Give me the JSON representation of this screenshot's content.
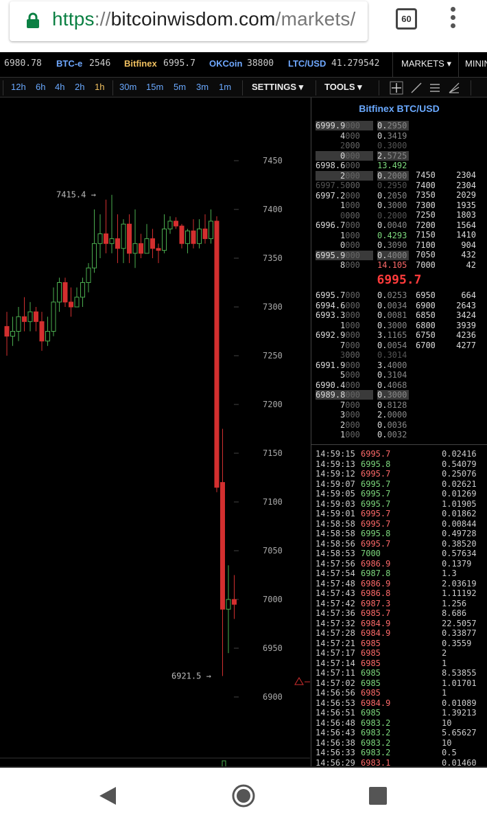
{
  "browser": {
    "url_scheme": "https",
    "url_sep": "://",
    "url_host": "bitcoinwisdom.com",
    "url_path": "/markets/",
    "tab_count": "60"
  },
  "ticker": [
    {
      "name": "",
      "value": "6980.78"
    },
    {
      "name": "BTC-e",
      "value": "2546"
    },
    {
      "name": "Bitfinex",
      "value": "6995.7"
    },
    {
      "name": "OKCoin",
      "value": "38800"
    },
    {
      "name": "LTC/USD",
      "value": "41.279542"
    }
  ],
  "nav": {
    "markets": "MARKETS ▾",
    "mining": "MININ"
  },
  "timeframes": [
    "12h",
    "6h",
    "4h",
    "2h",
    "1h",
    "30m",
    "15m",
    "5m",
    "3m",
    "1m"
  ],
  "selected_timeframe": "1h",
  "toolbar": {
    "settings": "SETTINGS ▾",
    "tools": "TOOLS ▾"
  },
  "chart_data": {
    "type": "candlestick",
    "y_ticks": [
      "7450",
      "7400",
      "7350",
      "7300",
      "7250",
      "7200",
      "7150",
      "7100",
      "7050",
      "7000",
      "6950",
      "6900"
    ],
    "ylim": [
      6880,
      7500
    ],
    "high_label": "7415.4 →",
    "low_label": "6921.5 →",
    "colors": {
      "up": "#4caf50",
      "down": "#d32f2f"
    },
    "candles": [
      {
        "o": 7280,
        "h": 7295,
        "l": 7250,
        "c": 7270
      },
      {
        "o": 7270,
        "h": 7290,
        "l": 7260,
        "c": 7275
      },
      {
        "o": 7275,
        "h": 7300,
        "l": 7265,
        "c": 7290
      },
      {
        "o": 7290,
        "h": 7310,
        "l": 7275,
        "c": 7285
      },
      {
        "o": 7285,
        "h": 7305,
        "l": 7275,
        "c": 7295
      },
      {
        "o": 7295,
        "h": 7300,
        "l": 7275,
        "c": 7285
      },
      {
        "o": 7285,
        "h": 7295,
        "l": 7255,
        "c": 7265
      },
      {
        "o": 7265,
        "h": 7290,
        "l": 7260,
        "c": 7275
      },
      {
        "o": 7275,
        "h": 7320,
        "l": 7270,
        "c": 7305
      },
      {
        "o": 7305,
        "h": 7330,
        "l": 7295,
        "c": 7325
      },
      {
        "o": 7325,
        "h": 7330,
        "l": 7300,
        "c": 7305
      },
      {
        "o": 7305,
        "h": 7320,
        "l": 7290,
        "c": 7300
      },
      {
        "o": 7300,
        "h": 7320,
        "l": 7300,
        "c": 7310
      },
      {
        "o": 7310,
        "h": 7330,
        "l": 7300,
        "c": 7325
      },
      {
        "o": 7325,
        "h": 7345,
        "l": 7315,
        "c": 7340
      },
      {
        "o": 7340,
        "h": 7400,
        "l": 7335,
        "c": 7365
      },
      {
        "o": 7365,
        "h": 7395,
        "l": 7350,
        "c": 7375
      },
      {
        "o": 7375,
        "h": 7410,
        "l": 7355,
        "c": 7365
      },
      {
        "o": 7365,
        "h": 7415,
        "l": 7355,
        "c": 7370
      },
      {
        "o": 7370,
        "h": 7395,
        "l": 7345,
        "c": 7360
      },
      {
        "o": 7360,
        "h": 7390,
        "l": 7345,
        "c": 7385
      },
      {
        "o": 7385,
        "h": 7395,
        "l": 7345,
        "c": 7355
      },
      {
        "o": 7355,
        "h": 7400,
        "l": 7340,
        "c": 7365
      },
      {
        "o": 7365,
        "h": 7375,
        "l": 7350,
        "c": 7355
      },
      {
        "o": 7355,
        "h": 7385,
        "l": 7355,
        "c": 7370
      },
      {
        "o": 7370,
        "h": 7380,
        "l": 7350,
        "c": 7360
      },
      {
        "o": 7360,
        "h": 7365,
        "l": 7345,
        "c": 7358
      },
      {
        "o": 7358,
        "h": 7395,
        "l": 7355,
        "c": 7380
      },
      {
        "o": 7380,
        "h": 7393,
        "l": 7375,
        "c": 7388
      },
      {
        "o": 7388,
        "h": 7392,
        "l": 7380,
        "c": 7383
      },
      {
        "o": 7383,
        "h": 7385,
        "l": 7360,
        "c": 7365
      },
      {
        "o": 7365,
        "h": 7380,
        "l": 7355,
        "c": 7378
      },
      {
        "o": 7378,
        "h": 7390,
        "l": 7360,
        "c": 7365
      },
      {
        "o": 7365,
        "h": 7390,
        "l": 7360,
        "c": 7380
      },
      {
        "o": 7380,
        "h": 7395,
        "l": 7365,
        "c": 7370
      },
      {
        "o": 7370,
        "h": 7400,
        "l": 7365,
        "c": 7388
      },
      {
        "o": 7388,
        "h": 7393,
        "l": 7110,
        "c": 7115
      },
      {
        "o": 7120,
        "h": 7175,
        "l": 6921.5,
        "c": 6990
      },
      {
        "o": 6990,
        "h": 7035,
        "l": 6945,
        "c": 7000
      },
      {
        "o": 7000,
        "h": 7025,
        "l": 6980,
        "c": 6995
      }
    ]
  },
  "orderbook": {
    "title": "Bitfinex BTC/USD",
    "asks": [
      {
        "price": "6999.9",
        "pdim": "000",
        "amt": "0.",
        "adim": "2950",
        "hp": true,
        "hl": true,
        "ac": "d"
      },
      {
        "price": "4",
        "pdim": "000",
        "amt": "0.",
        "adim": "3419",
        "hp": false,
        "hl": false,
        "ac": "n"
      },
      {
        "price": "2",
        "pdim": "000",
        "amt": "0.",
        "adim": "3000",
        "hp": false,
        "hl": false,
        "ac": "x"
      },
      {
        "price": "0",
        "pdim": "000",
        "amt": "2.",
        "adim": "5725",
        "hp": true,
        "hl": true,
        "ac": "d"
      },
      {
        "price": "6998.6",
        "pdim": "000",
        "amt": "13.",
        "adim": "492",
        "hp": false,
        "hl": false,
        "ac": "g"
      },
      {
        "price": "2",
        "pdim": "000",
        "amt": "0.",
        "adim": "2000",
        "hp": true,
        "hl": true,
        "ac": "d"
      },
      {
        "price": "6997.5",
        "pdim": "000",
        "amt": "0.",
        "adim": "2950",
        "hp": false,
        "hl": false,
        "ac": "x"
      },
      {
        "price": "6997.2",
        "pdim": "000",
        "amt": "0.",
        "adim": "2050",
        "hp": false,
        "hl": false,
        "ac": "n"
      },
      {
        "price": "1",
        "pdim": "000",
        "amt": "0.",
        "adim": "3000",
        "hp": false,
        "hl": false,
        "ac": "n"
      },
      {
        "price": "0",
        "pdim": "000",
        "amt": "0.",
        "adim": "2000",
        "hp": false,
        "hl": false,
        "ac": "x"
      },
      {
        "price": "6996.7",
        "pdim": "000",
        "amt": "0.",
        "adim": "0040",
        "hp": false,
        "hl": false,
        "ac": "n"
      },
      {
        "price": "1",
        "pdim": "000",
        "amt": "0.",
        "adim": "4293",
        "hp": false,
        "hl": false,
        "ac": "g"
      },
      {
        "price": "0",
        "pdim": "000",
        "amt": "0.",
        "adim": "3090",
        "hp": false,
        "hl": false,
        "ac": "n"
      },
      {
        "price": "6995.9",
        "pdim": "000",
        "amt": "0.",
        "adim": "4000",
        "hp": true,
        "hl": true,
        "ac": "d"
      },
      {
        "price": "8",
        "pdim": "000",
        "amt": "14.",
        "adim": "105",
        "hp": false,
        "hl": false,
        "ac": "r"
      }
    ],
    "ask_levels": [
      [
        "7450",
        "2304"
      ],
      [
        "7400",
        "2304"
      ],
      [
        "7350",
        "2029"
      ],
      [
        "7300",
        "1935"
      ],
      [
        "7250",
        "1803"
      ],
      [
        "7200",
        "1564"
      ],
      [
        "7150",
        "1410"
      ],
      [
        "7100",
        "904"
      ],
      [
        "7050",
        "432"
      ],
      [
        "7000",
        "42"
      ]
    ],
    "last_price": "6995.7",
    "bids": [
      {
        "price": "6995.7",
        "pdim": "000",
        "amt": "0.",
        "adim": "0253",
        "hp": false,
        "hl": false,
        "ac": "n"
      },
      {
        "price": "6994.6",
        "pdim": "000",
        "amt": "0.",
        "adim": "0034",
        "hp": false,
        "hl": false,
        "ac": "n"
      },
      {
        "price": "6993.3",
        "pdim": "000",
        "amt": "0.",
        "adim": "0081",
        "hp": false,
        "hl": false,
        "ac": "n"
      },
      {
        "price": "1",
        "pdim": "000",
        "amt": "0.",
        "adim": "3000",
        "hp": false,
        "hl": false,
        "ac": "n"
      },
      {
        "price": "6992.9",
        "pdim": "000",
        "amt": "3.",
        "adim": "1165",
        "hp": false,
        "hl": false,
        "ac": "n"
      },
      {
        "price": "7",
        "pdim": "000",
        "amt": "0.",
        "adim": "0054",
        "hp": false,
        "hl": false,
        "ac": "n"
      },
      {
        "price": "3",
        "pdim": "000",
        "amt": "0.",
        "adim": "3014",
        "hp": false,
        "hl": false,
        "ac": "x"
      },
      {
        "price": "6991.9",
        "pdim": "000",
        "amt": "3.",
        "adim": "4000",
        "hp": false,
        "hl": false,
        "ac": "n"
      },
      {
        "price": "5",
        "pdim": "000",
        "amt": "0.",
        "adim": "3104",
        "hp": false,
        "hl": false,
        "ac": "n"
      },
      {
        "price": "6990.4",
        "pdim": "000",
        "amt": "0.",
        "adim": "4068",
        "hp": false,
        "hl": false,
        "ac": "n"
      },
      {
        "price": "6989.8",
        "pdim": "000",
        "amt": "0.",
        "adim": "3000",
        "hp": true,
        "hl": true,
        "ac": "d"
      },
      {
        "price": "7",
        "pdim": "000",
        "amt": "0.",
        "adim": "8128",
        "hp": false,
        "hl": false,
        "ac": "n"
      },
      {
        "price": "3",
        "pdim": "000",
        "amt": "2.",
        "adim": "0000",
        "hp": false,
        "hl": false,
        "ac": "n"
      },
      {
        "price": "2",
        "pdim": "000",
        "amt": "0.",
        "adim": "0036",
        "hp": false,
        "hl": false,
        "ac": "n"
      },
      {
        "price": "1",
        "pdim": "000",
        "amt": "0.",
        "adim": "0032",
        "hp": false,
        "hl": false,
        "ac": "n"
      }
    ],
    "bid_levels": [
      [
        "6950",
        "664"
      ],
      [
        "6900",
        "2643"
      ],
      [
        "6850",
        "3424"
      ],
      [
        "6800",
        "3939"
      ],
      [
        "6750",
        "4236"
      ],
      [
        "6700",
        "4277"
      ]
    ]
  },
  "trades": [
    [
      "14:59:15",
      "6995.7",
      "s",
      "0.02416"
    ],
    [
      "14:59:13",
      "6995.8",
      "b",
      "0.54079"
    ],
    [
      "14:59:12",
      "6995.7",
      "s",
      "0.25076"
    ],
    [
      "14:59:07",
      "6995.7",
      "b",
      "0.02621"
    ],
    [
      "14:59:05",
      "6995.7",
      "b",
      "0.01269"
    ],
    [
      "14:59:03",
      "6995.7",
      "b",
      "1.01905"
    ],
    [
      "14:59:01",
      "6995.7",
      "s",
      "0.01862"
    ],
    [
      "14:58:58",
      "6995.7",
      "s",
      "0.00844"
    ],
    [
      "14:58:58",
      "6995.8",
      "b",
      "0.49728"
    ],
    [
      "14:58:56",
      "6995.7",
      "s",
      "0.38520"
    ],
    [
      "14:58:53",
      "7000",
      "b",
      "0.57634"
    ],
    [
      "14:57:56",
      "6986.9",
      "s",
      "0.1379"
    ],
    [
      "14:57:54",
      "6987.8",
      "b",
      "1.3"
    ],
    [
      "14:57:48",
      "6986.9",
      "s",
      "2.03619"
    ],
    [
      "14:57:43",
      "6986.8",
      "s",
      "1.11192"
    ],
    [
      "14:57:42",
      "6987.3",
      "s",
      "1.256"
    ],
    [
      "14:57:36",
      "6985.7",
      "s",
      "8.686"
    ],
    [
      "14:57:32",
      "6984.9",
      "s",
      "22.5057"
    ],
    [
      "14:57:28",
      "6984.9",
      "s",
      "0.33877"
    ],
    [
      "14:57:21",
      "6985",
      "s",
      "0.3559"
    ],
    [
      "14:57:17",
      "6985",
      "s",
      "2"
    ],
    [
      "14:57:14",
      "6985",
      "s",
      "1"
    ],
    [
      "14:57:11",
      "6985",
      "b",
      "8.53855"
    ],
    [
      "14:57:02",
      "6985",
      "b",
      "1.01701"
    ],
    [
      "14:56:56",
      "6985",
      "s",
      "1"
    ],
    [
      "14:56:53",
      "6984.9",
      "s",
      "0.01089"
    ],
    [
      "14:56:51",
      "6985",
      "b",
      "1.39213"
    ],
    [
      "14:56:48",
      "6983.2",
      "b",
      "10"
    ],
    [
      "14:56:43",
      "6983.2",
      "b",
      "5.65627"
    ],
    [
      "14:56:38",
      "6983.2",
      "b",
      "10"
    ],
    [
      "14:56:33",
      "6983.2",
      "b",
      "0.5"
    ],
    [
      "14:56:29",
      "6983.1",
      "s",
      "0.01460"
    ]
  ]
}
